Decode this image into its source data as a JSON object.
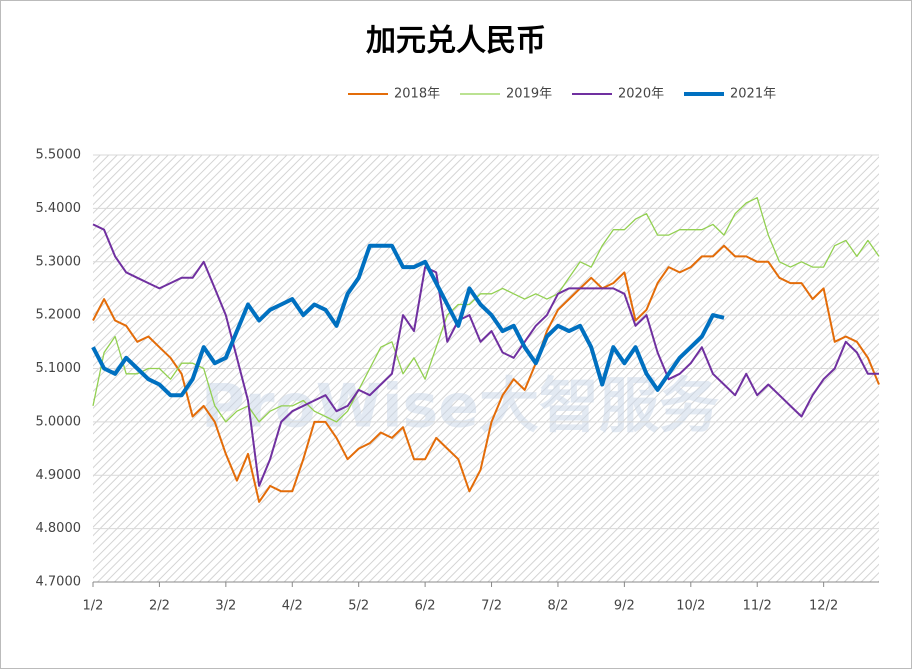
{
  "chart_data": {
    "type": "line",
    "title": "加元兑人民币",
    "watermark": "ProWise大智服务",
    "categories": [
      "1/2",
      null,
      null,
      null,
      null,
      null,
      "2/2",
      null,
      null,
      null,
      null,
      null,
      "3/2",
      null,
      null,
      null,
      null,
      null,
      "4/2",
      null,
      null,
      null,
      null,
      null,
      "5/2",
      null,
      null,
      null,
      null,
      null,
      "6/2",
      null,
      null,
      null,
      null,
      null,
      "7/2",
      null,
      null,
      null,
      null,
      null,
      "8/2",
      null,
      null,
      null,
      null,
      null,
      "9/2",
      null,
      null,
      null,
      null,
      null,
      "10/2",
      null,
      null,
      null,
      null,
      null,
      "11/2",
      null,
      null,
      null,
      null,
      null,
      "12/2",
      null,
      null,
      null,
      null,
      null
    ],
    "series": [
      {
        "name": "2018年",
        "color": "#e36c09",
        "width": 2,
        "values": [
          5.19,
          5.23,
          5.19,
          5.18,
          5.15,
          5.16,
          5.14,
          5.12,
          5.09,
          5.01,
          5.03,
          5.0,
          4.94,
          4.89,
          4.94,
          4.85,
          4.88,
          4.87,
          4.87,
          4.93,
          5.0,
          5.0,
          4.97,
          4.93,
          4.95,
          4.96,
          4.98,
          4.97,
          4.99,
          4.93,
          4.93,
          4.97,
          4.95,
          4.93,
          4.87,
          4.91,
          5.0,
          5.05,
          5.08,
          5.06,
          5.11,
          5.17,
          5.21,
          5.23,
          5.25,
          5.27,
          5.25,
          5.26,
          5.28,
          5.19,
          5.21,
          5.26,
          5.29,
          5.28,
          5.29,
          5.31,
          5.31,
          5.33,
          5.31,
          5.31,
          5.3,
          5.3,
          5.27,
          5.26,
          5.26,
          5.23,
          5.25,
          5.15,
          5.16,
          5.15,
          5.12,
          5.07
        ]
      },
      {
        "name": "2019年",
        "color": "#92d050",
        "width": 1.3,
        "values": [
          5.03,
          5.13,
          5.16,
          5.09,
          5.09,
          5.1,
          5.1,
          5.08,
          5.11,
          5.11,
          5.1,
          5.03,
          5.0,
          5.02,
          5.03,
          5.0,
          5.02,
          5.03,
          5.03,
          5.04,
          5.02,
          5.01,
          5.0,
          5.02,
          5.06,
          5.1,
          5.14,
          5.15,
          5.09,
          5.12,
          5.08,
          5.14,
          5.2,
          5.22,
          5.22,
          5.24,
          5.24,
          5.25,
          5.24,
          5.23,
          5.24,
          5.23,
          5.24,
          5.27,
          5.3,
          5.29,
          5.33,
          5.36,
          5.36,
          5.38,
          5.39,
          5.35,
          5.35,
          5.36,
          5.36,
          5.36,
          5.37,
          5.35,
          5.39,
          5.41,
          5.42,
          5.35,
          5.3,
          5.29,
          5.3,
          5.29,
          5.29,
          5.33,
          5.34,
          5.31,
          5.34,
          5.31
        ]
      },
      {
        "name": "2020年",
        "color": "#7030a0",
        "width": 2,
        "values": [
          5.37,
          5.36,
          5.31,
          5.28,
          5.27,
          5.26,
          5.25,
          5.26,
          5.27,
          5.27,
          5.3,
          5.25,
          5.2,
          5.12,
          5.04,
          4.88,
          4.93,
          5.0,
          5.02,
          5.03,
          5.04,
          5.05,
          5.02,
          5.03,
          5.06,
          5.05,
          5.07,
          5.09,
          5.2,
          5.17,
          5.29,
          5.28,
          5.15,
          5.19,
          5.2,
          5.15,
          5.17,
          5.13,
          5.12,
          5.15,
          5.18,
          5.2,
          5.24,
          5.25,
          5.25,
          5.25,
          5.25,
          5.25,
          5.24,
          5.18,
          5.2,
          5.13,
          5.08,
          5.09,
          5.11,
          5.14,
          5.09,
          5.07,
          5.05,
          5.09,
          5.05,
          5.07,
          5.05,
          5.03,
          5.01,
          5.05,
          5.08,
          5.1,
          5.15,
          5.13,
          5.09,
          5.09
        ]
      },
      {
        "name": "2021年",
        "color": "#0070c0",
        "width": 4,
        "values": [
          5.14,
          5.1,
          5.09,
          5.12,
          5.1,
          5.08,
          5.07,
          5.05,
          5.05,
          5.08,
          5.14,
          5.11,
          5.12,
          5.17,
          5.22,
          5.19,
          5.21,
          5.22,
          5.23,
          5.2,
          5.22,
          5.21,
          5.18,
          5.24,
          5.27,
          5.33,
          5.33,
          5.33,
          5.29,
          5.29,
          5.3,
          5.26,
          5.22,
          5.18,
          5.25,
          5.22,
          5.2,
          5.17,
          5.18,
          5.14,
          5.11,
          5.16,
          5.18,
          5.17,
          5.18,
          5.14,
          5.07,
          5.14,
          5.11,
          5.14,
          5.09,
          5.06,
          5.09,
          5.12,
          5.14,
          5.16,
          5.2,
          5.195,
          null,
          null,
          null,
          null,
          null,
          null,
          null,
          null,
          null,
          null,
          null,
          null,
          null,
          null
        ]
      }
    ],
    "ylim": [
      4.7,
      5.5
    ],
    "yticks": [
      {
        "value": 4.7,
        "label": "4.7000"
      },
      {
        "value": 4.8,
        "label": "4.8000"
      },
      {
        "value": 4.9,
        "label": "4.9000"
      },
      {
        "value": 5.0,
        "label": "5.0000"
      },
      {
        "value": 5.1,
        "label": "5.1000"
      },
      {
        "value": 5.2,
        "label": "5.2000"
      },
      {
        "value": 5.3,
        "label": "5.3000"
      },
      {
        "value": 5.4,
        "label": "5.4000"
      },
      {
        "value": 5.5,
        "label": "5.5000"
      }
    ],
    "grid": true,
    "legend": "top"
  }
}
